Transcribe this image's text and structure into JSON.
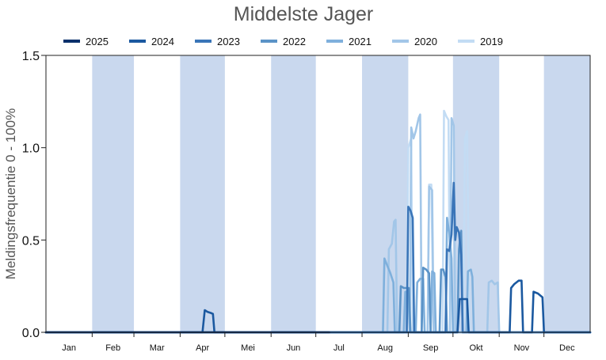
{
  "chart_data": {
    "type": "line",
    "title": "Middelste Jager",
    "ylabel": "Meldingsfrequentie 0 - 100%",
    "xlabel": "",
    "ylim": [
      0,
      1.5
    ],
    "yticks": [
      "0.0",
      "0.5",
      "1.0",
      "1.5"
    ],
    "ytick_values": [
      0,
      0.5,
      1.0,
      1.5
    ],
    "months": [
      "Jan",
      "Feb",
      "Mar",
      "Apr",
      "Mei",
      "Jun",
      "Jul",
      "Aug",
      "Sep",
      "Okt",
      "Nov",
      "Dec"
    ],
    "shaded_months": [
      "Feb",
      "Apr",
      "Jun",
      "Aug",
      "Okt",
      "Dec"
    ],
    "legend_position": "top",
    "grid": false,
    "band_color": "#c9d8ee",
    "series": [
      {
        "name": "2025",
        "color": "#08306b",
        "points": [
          [
            0,
            0
          ],
          [
            12,
            0
          ],
          [
            24,
            0
          ],
          [
            36,
            0
          ],
          [
            48,
            0
          ],
          [
            60,
            0
          ],
          [
            72,
            0
          ],
          [
            84,
            0
          ],
          [
            96,
            0
          ],
          [
            108,
            0
          ],
          [
            120,
            0
          ],
          [
            132,
            0
          ],
          [
            144,
            0
          ],
          [
            156,
            0
          ],
          [
            168,
            0
          ],
          [
            180,
            0
          ],
          [
            190,
            0
          ]
        ]
      },
      {
        "name": "2024",
        "color": "#1b59a0",
        "points": [
          [
            0,
            0
          ],
          [
            20,
            0
          ],
          [
            40,
            0
          ],
          [
            60,
            0
          ],
          [
            80,
            0
          ],
          [
            100,
            0
          ],
          [
            105,
            0
          ],
          [
            106.5,
            0.12
          ],
          [
            108.5,
            0.11
          ],
          [
            110.5,
            0.105
          ],
          [
            112,
            0.1
          ],
          [
            113,
            0
          ],
          [
            130,
            0
          ],
          [
            160,
            0
          ],
          [
            200,
            0
          ],
          [
            230,
            0
          ],
          [
            255,
            0
          ],
          [
            265,
            0
          ],
          [
            276,
            0
          ],
          [
            277.5,
            0.18
          ],
          [
            279,
            0.18
          ],
          [
            281,
            0.18
          ],
          [
            282.5,
            0.18
          ],
          [
            283.5,
            0
          ],
          [
            300,
            0
          ],
          [
            311,
            0
          ],
          [
            312,
            0.24
          ],
          [
            314,
            0.26
          ],
          [
            317,
            0.28
          ],
          [
            319,
            0.28
          ],
          [
            320,
            0
          ],
          [
            326,
            0
          ],
          [
            327,
            0.22
          ],
          [
            330,
            0.21
          ],
          [
            333,
            0.19
          ],
          [
            334,
            0
          ],
          [
            365,
            0
          ]
        ]
      },
      {
        "name": "2023",
        "color": "#3a75b8",
        "points": [
          [
            0,
            0
          ],
          [
            100,
            0
          ],
          [
            200,
            0
          ],
          [
            242,
            0
          ],
          [
            243,
            0.68
          ],
          [
            244.5,
            0.66
          ],
          [
            246,
            0.62
          ],
          [
            247,
            0
          ],
          [
            260,
            0
          ],
          [
            268,
            0
          ],
          [
            269,
            0.45
          ],
          [
            270.5,
            0.44
          ],
          [
            272,
            0.53
          ],
          [
            273.5,
            0.81
          ],
          [
            274.5,
            0.5
          ],
          [
            275.5,
            0.57
          ],
          [
            277,
            0.54
          ],
          [
            278.5,
            0.42
          ],
          [
            279.5,
            0
          ],
          [
            365,
            0
          ]
        ]
      },
      {
        "name": "2022",
        "color": "#5b93c7",
        "points": [
          [
            0,
            0
          ],
          [
            100,
            0
          ],
          [
            200,
            0
          ],
          [
            237,
            0
          ],
          [
            238,
            0.25
          ],
          [
            240,
            0.24
          ],
          [
            242,
            0.24
          ],
          [
            243.5,
            0.24
          ],
          [
            244.5,
            0
          ],
          [
            252,
            0
          ],
          [
            253,
            0.35
          ],
          [
            255,
            0.34
          ],
          [
            257,
            0.32
          ],
          [
            258,
            0
          ],
          [
            264,
            0
          ],
          [
            265,
            0.34
          ],
          [
            266.5,
            0.34
          ],
          [
            268,
            0.3
          ],
          [
            269,
            0
          ],
          [
            276,
            0
          ],
          [
            277,
            0.45
          ],
          [
            278.5,
            0.55
          ],
          [
            279.5,
            0
          ],
          [
            365,
            0
          ]
        ]
      },
      {
        "name": "2021",
        "color": "#7fb0dc",
        "points": [
          [
            0,
            0
          ],
          [
            100,
            0
          ],
          [
            200,
            0
          ],
          [
            226,
            0
          ],
          [
            227,
            0.4
          ],
          [
            229,
            0.36
          ],
          [
            231,
            0.32
          ],
          [
            233,
            0.27
          ],
          [
            234,
            0
          ],
          [
            240,
            0
          ],
          [
            241,
            0.22
          ],
          [
            243,
            0.22
          ],
          [
            244,
            0
          ],
          [
            248,
            0
          ],
          [
            249,
            0.27
          ],
          [
            251,
            0.29
          ],
          [
            253,
            0.29
          ],
          [
            254,
            0
          ],
          [
            258,
            0
          ],
          [
            259,
            0.33
          ],
          [
            260.5,
            0.32
          ],
          [
            261.5,
            0
          ],
          [
            268,
            0
          ],
          [
            269,
            0.62
          ],
          [
            270.5,
            0.54
          ],
          [
            272,
            0.4
          ],
          [
            273,
            0
          ],
          [
            282,
            0
          ],
          [
            283,
            0.33
          ],
          [
            285,
            0.34
          ],
          [
            286,
            0.3
          ],
          [
            287,
            0
          ],
          [
            365,
            0
          ]
        ]
      },
      {
        "name": "2020",
        "color": "#a2c6e8",
        "points": [
          [
            0,
            0
          ],
          [
            100,
            0
          ],
          [
            200,
            0
          ],
          [
            229,
            0
          ],
          [
            230,
            0.45
          ],
          [
            232,
            0.48
          ],
          [
            233.5,
            0.6
          ],
          [
            234.5,
            0.61
          ],
          [
            235.5,
            0
          ],
          [
            244,
            0
          ],
          [
            245,
            1.11
          ],
          [
            246.5,
            1.05
          ],
          [
            248,
            1.09
          ],
          [
            250,
            1.16
          ],
          [
            251,
            1.18
          ],
          [
            252,
            0
          ],
          [
            256,
            0
          ],
          [
            257,
            0.79
          ],
          [
            259,
            0.77
          ],
          [
            260,
            0
          ],
          [
            271,
            0
          ],
          [
            272,
            1.16
          ],
          [
            273.5,
            1.12
          ],
          [
            274.5,
            0
          ],
          [
            296,
            0
          ],
          [
            297,
            0.27
          ],
          [
            299,
            0.28
          ],
          [
            301,
            0.26
          ],
          [
            303,
            0.27
          ],
          [
            304,
            0
          ],
          [
            365,
            0
          ]
        ]
      },
      {
        "name": "2019",
        "color": "#c3dcf4",
        "points": [
          [
            0,
            0
          ],
          [
            100,
            0
          ],
          [
            200,
            0
          ],
          [
            242,
            0
          ],
          [
            243,
            1.0
          ],
          [
            245,
            1.05
          ],
          [
            246,
            0
          ],
          [
            256,
            0
          ],
          [
            257,
            0.8
          ],
          [
            258.5,
            0.8
          ],
          [
            260,
            0
          ],
          [
            266,
            0
          ],
          [
            267,
            1.2
          ],
          [
            268.5,
            1.17
          ],
          [
            270,
            1.15
          ],
          [
            271,
            0
          ],
          [
            280,
            0
          ],
          [
            281,
            1.05
          ],
          [
            282.5,
            1.09
          ],
          [
            284,
            0
          ],
          [
            365,
            0
          ]
        ]
      }
    ]
  }
}
